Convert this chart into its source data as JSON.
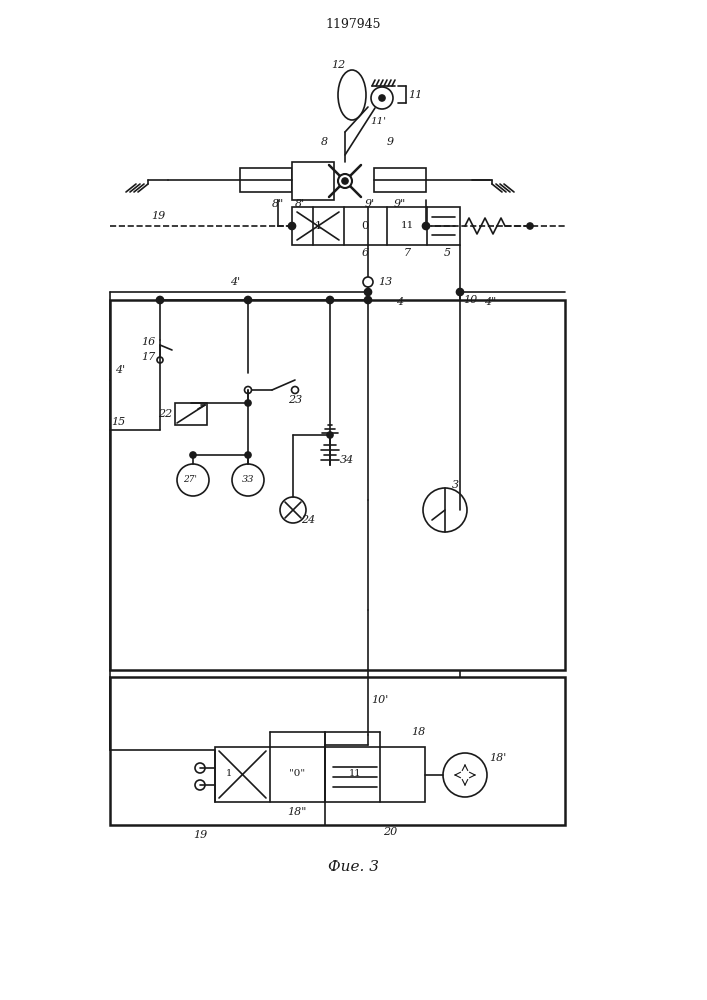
{
  "title": "1197945",
  "caption": "Фие. 3",
  "bg_color": "#ffffff",
  "line_color": "#1a1a1a",
  "figsize": [
    7.07,
    10.0
  ],
  "dpi": 100
}
